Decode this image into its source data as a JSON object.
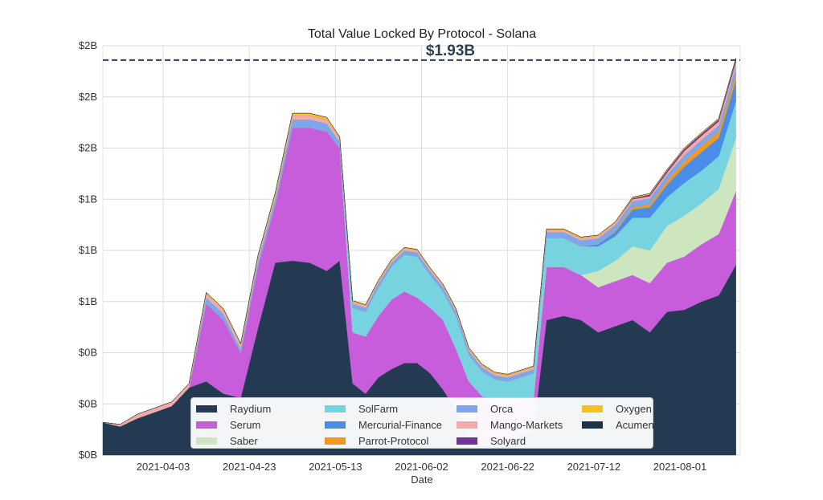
{
  "chart_data": {
    "type": "area",
    "stacked": true,
    "title": "Total Value Locked By Protocol - Solana",
    "xlabel": "Date",
    "ylabel": "",
    "annotation": {
      "text": "$1.93B",
      "value_billions": 1.93,
      "line_style": "dashed",
      "color": "#2c3e55"
    },
    "grid": true,
    "legend_position": "bottom-center",
    "ylim": [
      0,
      2.0
    ],
    "y_ticks": [
      {
        "value": 0.0,
        "label": "$0B"
      },
      {
        "value": 0.25,
        "label": "$0B"
      },
      {
        "value": 0.5,
        "label": "$0B"
      },
      {
        "value": 0.75,
        "label": "$1B"
      },
      {
        "value": 1.0,
        "label": "$1B"
      },
      {
        "value": 1.25,
        "label": "$1B"
      },
      {
        "value": 1.5,
        "label": "$2B"
      },
      {
        "value": 1.75,
        "label": "$2B"
      },
      {
        "value": 2.0,
        "label": "$2B"
      }
    ],
    "x_range": [
      "2021-03-20",
      "2021-08-15"
    ],
    "x_ticks": [
      "2021-04-03",
      "2021-04-23",
      "2021-05-13",
      "2021-06-02",
      "2021-06-22",
      "2021-07-12",
      "2021-08-01"
    ],
    "x": [
      "2021-03-20",
      "2021-03-24",
      "2021-03-28",
      "2021-04-01",
      "2021-04-05",
      "2021-04-09",
      "2021-04-13",
      "2021-04-17",
      "2021-04-21",
      "2021-04-25",
      "2021-04-29",
      "2021-05-03",
      "2021-05-07",
      "2021-05-11",
      "2021-05-14",
      "2021-05-17",
      "2021-05-20",
      "2021-05-23",
      "2021-05-26",
      "2021-05-29",
      "2021-06-01",
      "2021-06-04",
      "2021-06-07",
      "2021-06-10",
      "2021-06-13",
      "2021-06-16",
      "2021-06-19",
      "2021-06-22",
      "2021-06-25",
      "2021-06-28",
      "2021-07-01",
      "2021-07-05",
      "2021-07-09",
      "2021-07-13",
      "2021-07-17",
      "2021-07-21",
      "2021-07-25",
      "2021-07-29",
      "2021-08-02",
      "2021-08-06",
      "2021-08-10",
      "2021-08-14"
    ],
    "series": [
      {
        "name": "Raydium",
        "color": "#233a52",
        "values": [
          0.16,
          0.14,
          0.18,
          0.21,
          0.24,
          0.33,
          0.36,
          0.3,
          0.28,
          0.62,
          0.94,
          0.95,
          0.94,
          0.9,
          0.95,
          0.35,
          0.3,
          0.38,
          0.42,
          0.45,
          0.45,
          0.4,
          0.32,
          0.22,
          0.1,
          0.05,
          0.05,
          0.06,
          0.1,
          0.12,
          0.66,
          0.68,
          0.66,
          0.6,
          0.63,
          0.66,
          0.6,
          0.7,
          0.71,
          0.75,
          0.78,
          0.93
        ]
      },
      {
        "name": "Serum",
        "color": "#c75ddb",
        "values": [
          0.0,
          0.0,
          0.0,
          0.0,
          0.0,
          0.0,
          0.38,
          0.36,
          0.22,
          0.3,
          0.28,
          0.65,
          0.66,
          0.68,
          0.55,
          0.25,
          0.28,
          0.3,
          0.34,
          0.35,
          0.32,
          0.32,
          0.34,
          0.3,
          0.26,
          0.24,
          0.2,
          0.18,
          0.16,
          0.16,
          0.26,
          0.24,
          0.22,
          0.22,
          0.22,
          0.22,
          0.24,
          0.24,
          0.26,
          0.28,
          0.3,
          0.36
        ]
      },
      {
        "name": "Saber",
        "color": "#cde6bf",
        "values": [
          0.0,
          0.0,
          0.0,
          0.0,
          0.0,
          0.0,
          0.0,
          0.0,
          0.0,
          0.0,
          0.0,
          0.0,
          0.0,
          0.0,
          0.0,
          0.0,
          0.0,
          0.0,
          0.0,
          0.0,
          0.0,
          0.0,
          0.0,
          0.0,
          0.0,
          0.0,
          0.0,
          0.0,
          0.0,
          0.0,
          0.0,
          0.0,
          0.0,
          0.08,
          0.1,
          0.14,
          0.16,
          0.18,
          0.2,
          0.2,
          0.22,
          0.26
        ]
      },
      {
        "name": "SolFarm",
        "color": "#78d3e0",
        "values": [
          0.0,
          0.0,
          0.0,
          0.0,
          0.0,
          0.0,
          0.0,
          0.0,
          0.0,
          0.0,
          0.0,
          0.0,
          0.0,
          0.0,
          0.0,
          0.12,
          0.12,
          0.14,
          0.16,
          0.18,
          0.2,
          0.16,
          0.14,
          0.16,
          0.13,
          0.12,
          0.12,
          0.12,
          0.12,
          0.12,
          0.14,
          0.14,
          0.14,
          0.12,
          0.12,
          0.14,
          0.16,
          0.14,
          0.16,
          0.16,
          0.16,
          0.18
        ]
      },
      {
        "name": "Mercurial-Finance",
        "color": "#4a8de8",
        "values": [
          0.0,
          0.0,
          0.0,
          0.0,
          0.0,
          0.0,
          0.0,
          0.0,
          0.0,
          0.0,
          0.0,
          0.0,
          0.0,
          0.0,
          0.0,
          0.0,
          0.0,
          0.0,
          0.0,
          0.0,
          0.0,
          0.0,
          0.0,
          0.0,
          0.0,
          0.0,
          0.0,
          0.0,
          0.0,
          0.0,
          0.0,
          0.0,
          0.0,
          0.01,
          0.02,
          0.04,
          0.05,
          0.06,
          0.08,
          0.09,
          0.09,
          0.1
        ]
      },
      {
        "name": "Parrot-Protocol",
        "color": "#f0981f",
        "values": [
          0.0,
          0.0,
          0.0,
          0.0,
          0.0,
          0.0,
          0.0,
          0.0,
          0.0,
          0.0,
          0.0,
          0.0,
          0.0,
          0.0,
          0.0,
          0.0,
          0.0,
          0.0,
          0.0,
          0.0,
          0.0,
          0.0,
          0.0,
          0.0,
          0.0,
          0.0,
          0.0,
          0.0,
          0.0,
          0.0,
          0.0,
          0.0,
          0.0,
          0.0,
          0.005,
          0.01,
          0.015,
          0.02,
          0.025,
          0.03,
          0.03,
          0.03
        ]
      },
      {
        "name": "Orca",
        "color": "#7ea7ea",
        "values": [
          0.0,
          0.0,
          0.0,
          0.0,
          0.0,
          0.0,
          0.03,
          0.03,
          0.02,
          0.03,
          0.03,
          0.04,
          0.04,
          0.04,
          0.03,
          0.02,
          0.02,
          0.02,
          0.02,
          0.02,
          0.02,
          0.02,
          0.02,
          0.02,
          0.02,
          0.02,
          0.02,
          0.02,
          0.02,
          0.02,
          0.03,
          0.03,
          0.03,
          0.03,
          0.03,
          0.03,
          0.03,
          0.03,
          0.03,
          0.03,
          0.03,
          0.04
        ]
      },
      {
        "name": "Mango-Markets",
        "color": "#f3aaa8",
        "values": [
          0.0,
          0.01,
          0.02,
          0.02,
          0.02,
          0.02,
          0.02,
          0.02,
          0.02,
          0.02,
          0.02,
          0.02,
          0.02,
          0.02,
          0.02,
          0.01,
          0.01,
          0.01,
          0.01,
          0.01,
          0.01,
          0.01,
          0.01,
          0.01,
          0.01,
          0.01,
          0.01,
          0.01,
          0.01,
          0.01,
          0.01,
          0.01,
          0.01,
          0.01,
          0.01,
          0.01,
          0.01,
          0.01,
          0.02,
          0.02,
          0.02,
          0.02
        ]
      },
      {
        "name": "Solyard",
        "color": "#6d3598",
        "values": [
          0.0,
          0.0,
          0.0,
          0.0,
          0.0,
          0.0,
          0.0,
          0.0,
          0.0,
          0.0,
          0.0,
          0.0,
          0.0,
          0.0,
          0.0,
          0.0,
          0.0,
          0.0,
          0.0,
          0.0,
          0.0,
          0.0,
          0.0,
          0.0,
          0.0,
          0.0,
          0.0,
          0.0,
          0.0,
          0.0,
          0.0,
          0.0,
          0.0,
          0.0,
          0.0,
          0.005,
          0.008,
          0.01,
          0.01,
          0.01,
          0.01,
          0.01
        ]
      },
      {
        "name": "Oxygen",
        "color": "#f5c21b",
        "values": [
          0.0,
          0.0,
          0.0,
          0.0,
          0.0,
          0.0,
          0.005,
          0.005,
          0.005,
          0.005,
          0.01,
          0.01,
          0.01,
          0.01,
          0.005,
          0.005,
          0.005,
          0.005,
          0.005,
          0.005,
          0.005,
          0.005,
          0.005,
          0.005,
          0.005,
          0.005,
          0.005,
          0.005,
          0.005,
          0.005,
          0.005,
          0.005,
          0.005,
          0.005,
          0.005,
          0.005,
          0.005,
          0.005,
          0.005,
          0.005,
          0.005,
          0.005
        ]
      },
      {
        "name": "Acumen",
        "color": "#1f3347",
        "values": [
          0.0,
          0.0,
          0.0,
          0.0,
          0.0,
          0.0,
          0.0,
          0.0,
          0.0,
          0.0,
          0.0,
          0.0,
          0.0,
          0.0,
          0.0,
          0.0,
          0.0,
          0.0,
          0.0,
          0.0,
          0.0,
          0.0,
          0.0,
          0.0,
          0.0,
          0.0,
          0.0,
          0.0,
          0.0,
          0.0,
          0.0,
          0.0,
          0.0,
          0.0,
          0.0,
          0.0,
          0.0,
          0.0,
          0.0,
          0.0,
          0.0,
          0.005
        ]
      }
    ]
  }
}
